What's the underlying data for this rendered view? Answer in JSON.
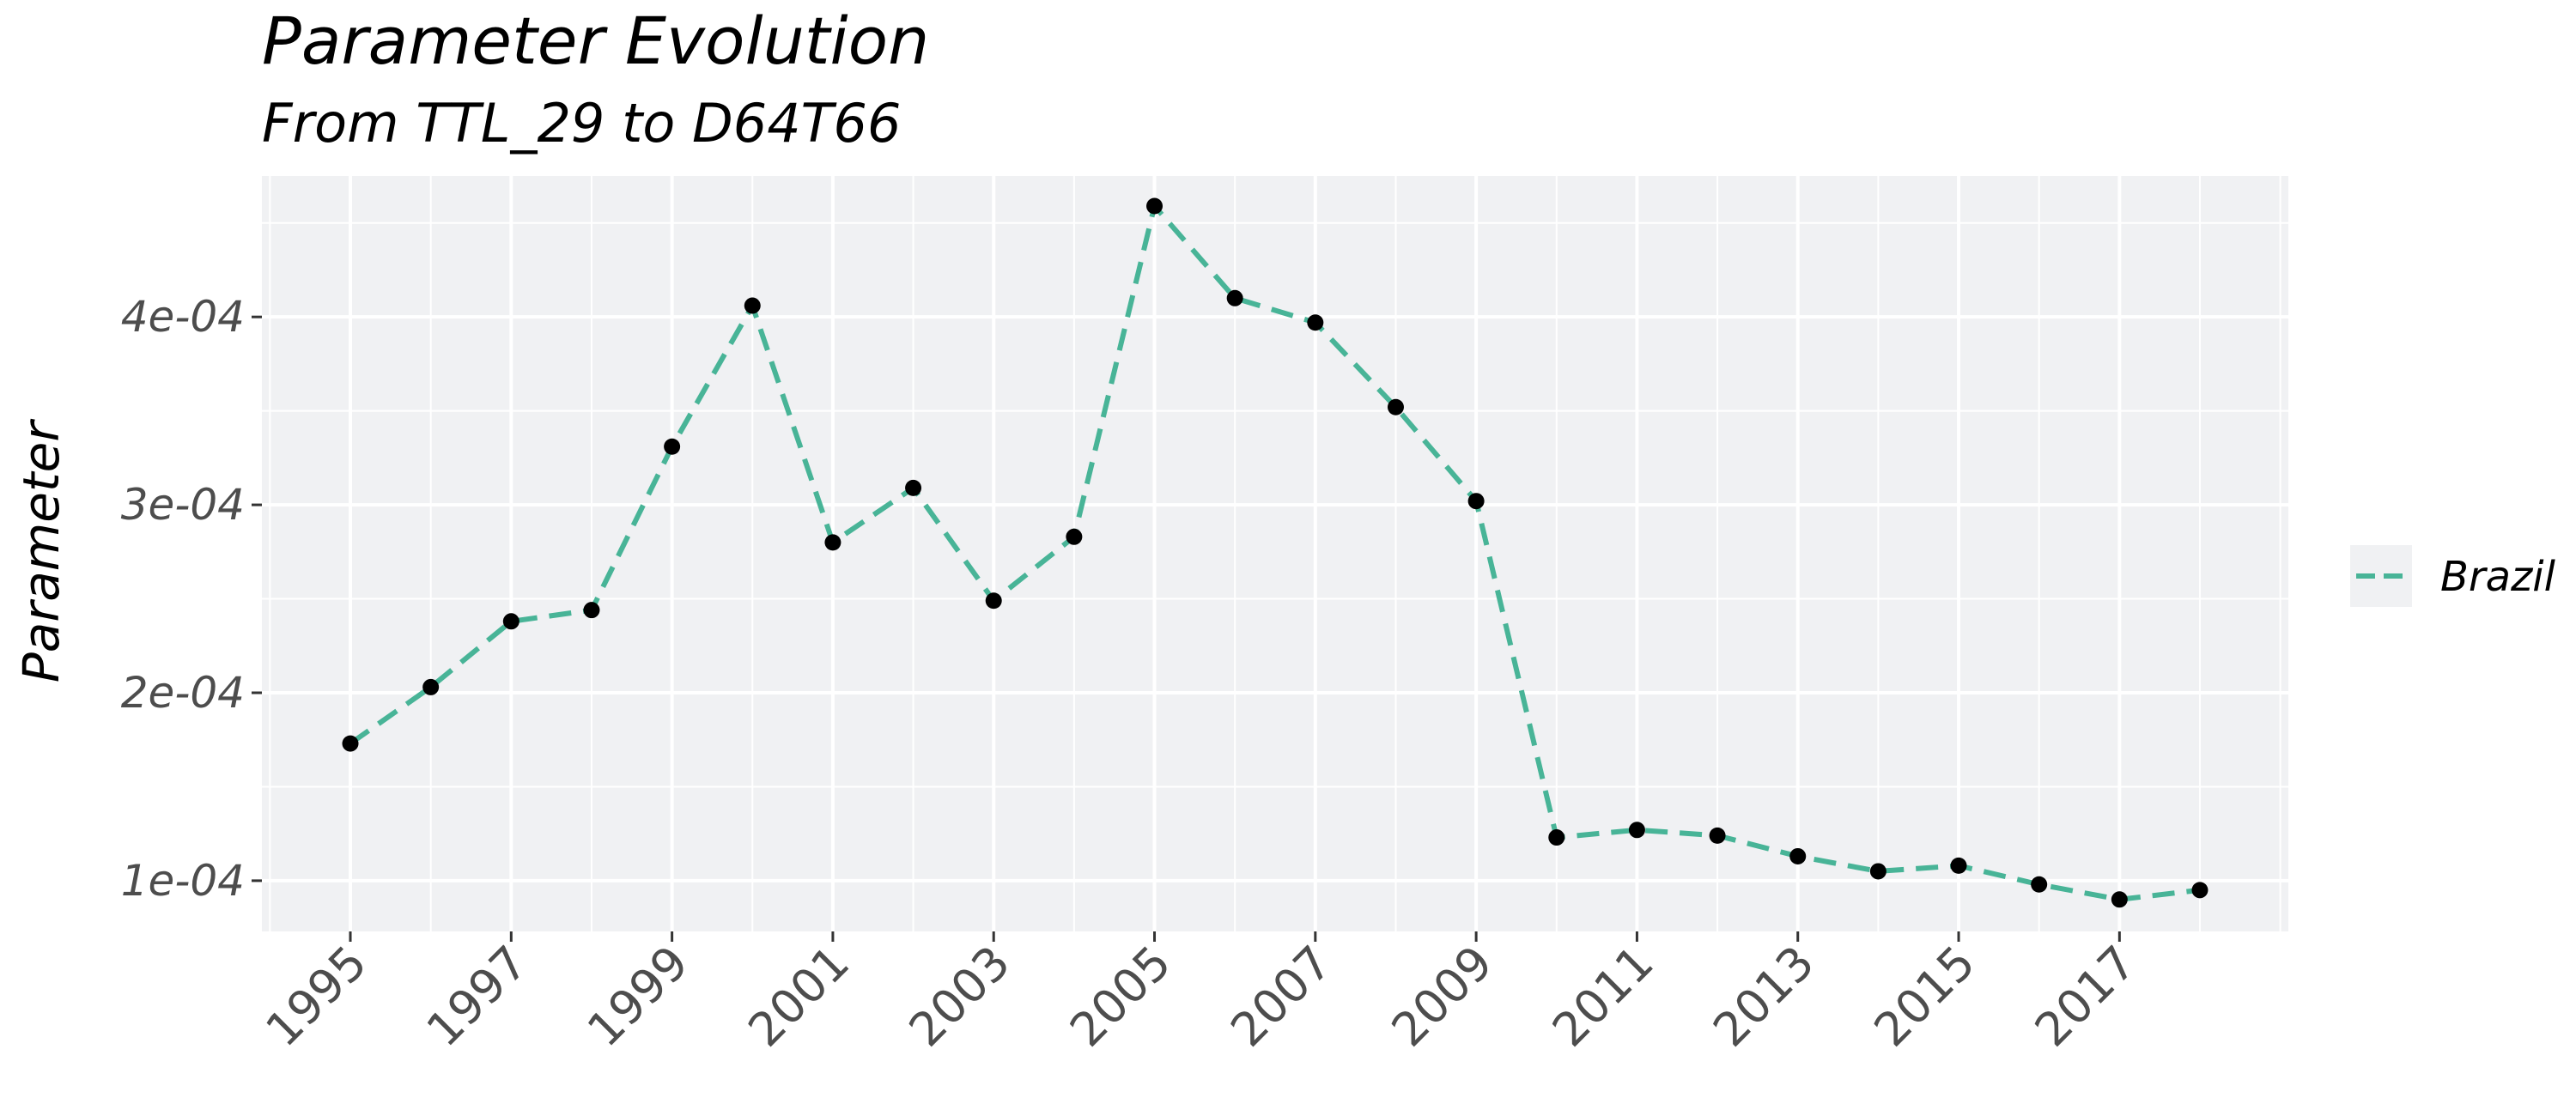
{
  "chart_data": {
    "type": "line",
    "title": "Parameter Evolution",
    "subtitle": "From TTL_29 to D64T66",
    "xlabel": "",
    "ylabel": "Parameter",
    "x": [
      1995,
      1996,
      1997,
      1998,
      1999,
      2000,
      2001,
      2002,
      2003,
      2004,
      2005,
      2006,
      2007,
      2008,
      2009,
      2010,
      2011,
      2012,
      2013,
      2014,
      2015,
      2016,
      2017,
      2018
    ],
    "x_tick_labels": [
      "1995",
      "1997",
      "1999",
      "2001",
      "2003",
      "2005",
      "2007",
      "2009",
      "2011",
      "2013",
      "2015",
      "2017"
    ],
    "y_tick_labels": [
      "1e-04",
      "2e-04",
      "3e-04",
      "4e-04"
    ],
    "y_ticks": [
      0.0001,
      0.0002,
      0.0003,
      0.0004
    ],
    "xlim": [
      1993.9,
      2019.1
    ],
    "ylim": [
      7.3e-05,
      0.000475
    ],
    "grid": true,
    "legend_position": "right",
    "series": [
      {
        "name": "Brazil",
        "color": "#48b497",
        "line_style": "dashed",
        "point_color": "#000000",
        "values": [
          0.000173,
          0.000203,
          0.000238,
          0.000244,
          0.000331,
          0.000406,
          0.00028,
          0.000309,
          0.000249,
          0.000283,
          0.000459,
          0.00041,
          0.000397,
          0.000352,
          0.000302,
          0.000123,
          0.000127,
          0.000124,
          0.000113,
          0.000105,
          0.000108,
          9.8e-05,
          9e-05,
          9.5e-05
        ]
      }
    ]
  }
}
